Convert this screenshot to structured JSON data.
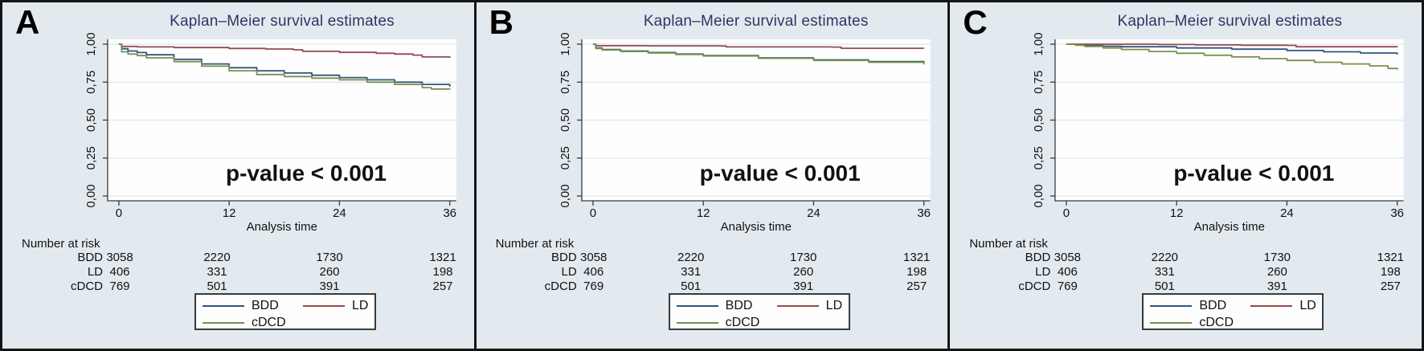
{
  "figure": {
    "panel_labels": [
      "A",
      "B",
      "C"
    ]
  },
  "chart_data": [
    {
      "type": "line",
      "panel": "A",
      "title": "Kaplan–Meier survival estimates",
      "annotation": "p-value < 0.001",
      "xlabel": "Analysis time",
      "ylabel": "",
      "xlim": [
        0,
        36
      ],
      "ylim": [
        0,
        1.0
      ],
      "grid": true,
      "x_ticks": [
        0,
        12,
        24,
        36
      ],
      "x_tick_labels": [
        "0",
        "12",
        "24",
        "36"
      ],
      "y_ticks": [
        0,
        0.25,
        0.5,
        0.75,
        1.0
      ],
      "y_tick_labels": [
        "0,00",
        "0,25",
        "0,50",
        "0,75",
        "1,00"
      ],
      "legend_position": "bottom-center",
      "series": [
        {
          "name": "BDD",
          "color": "#2f5580",
          "x": [
            0,
            0.3,
            1,
            2,
            3,
            6,
            9,
            12,
            15,
            18,
            21,
            24,
            27,
            30,
            33,
            36
          ],
          "y": [
            1.0,
            0.97,
            0.955,
            0.945,
            0.93,
            0.9,
            0.87,
            0.845,
            0.825,
            0.81,
            0.795,
            0.78,
            0.765,
            0.75,
            0.735,
            0.72
          ]
        },
        {
          "name": "LD",
          "color": "#944a4e",
          "x": [
            0,
            0.3,
            2,
            6,
            12,
            16,
            19,
            20,
            24,
            28,
            30,
            32,
            33,
            36
          ],
          "y": [
            1.0,
            0.985,
            0.982,
            0.978,
            0.972,
            0.968,
            0.963,
            0.953,
            0.946,
            0.94,
            0.935,
            0.928,
            0.916,
            0.91
          ]
        },
        {
          "name": "cDCD",
          "color": "#78904a",
          "x": [
            0,
            0.3,
            1,
            2,
            3,
            6,
            9,
            12,
            15,
            18,
            21,
            24,
            27,
            30,
            33,
            34,
            36
          ],
          "y": [
            1.0,
            0.95,
            0.935,
            0.925,
            0.91,
            0.885,
            0.855,
            0.825,
            0.8,
            0.787,
            0.776,
            0.765,
            0.75,
            0.735,
            0.714,
            0.705,
            0.7
          ]
        }
      ],
      "number_at_risk": {
        "title": "Number at risk",
        "times": [
          0,
          12,
          24,
          36
        ],
        "rows": [
          {
            "label": "BDD",
            "values": [
              "3058",
              "2220",
              "1730",
              "1321"
            ]
          },
          {
            "label": "LD",
            "values": [
              "406",
              "331",
              "260",
              "198"
            ]
          },
          {
            "label": "cDCD",
            "values": [
              "769",
              "501",
              "391",
              "257"
            ]
          }
        ]
      }
    },
    {
      "type": "line",
      "panel": "B",
      "title": "Kaplan–Meier survival estimates",
      "annotation": "p-value < 0.001",
      "xlabel": "Analysis time",
      "ylabel": "",
      "xlim": [
        0,
        36
      ],
      "ylim": [
        0,
        1.0
      ],
      "grid": true,
      "x_ticks": [
        0,
        12,
        24,
        36
      ],
      "x_tick_labels": [
        "0",
        "12",
        "24",
        "36"
      ],
      "y_ticks": [
        0,
        0.25,
        0.5,
        0.75,
        1.0
      ],
      "y_tick_labels": [
        "0,00",
        "0,25",
        "0,50",
        "0,75",
        "1,00"
      ],
      "legend_position": "bottom-center",
      "series": [
        {
          "name": "BDD",
          "color": "#2f5580",
          "x": [
            0,
            0.3,
            1,
            3,
            6,
            9,
            12,
            18,
            24,
            30,
            36
          ],
          "y": [
            1.0,
            0.975,
            0.965,
            0.955,
            0.945,
            0.935,
            0.925,
            0.91,
            0.897,
            0.885,
            0.872
          ]
        },
        {
          "name": "LD",
          "color": "#944a4e",
          "x": [
            0,
            0.3,
            6,
            14,
            14.5,
            26,
            27,
            36
          ],
          "y": [
            1.0,
            0.99,
            0.989,
            0.988,
            0.982,
            0.981,
            0.973,
            0.972
          ]
        },
        {
          "name": "cDCD",
          "color": "#78904a",
          "x": [
            0,
            0.3,
            1,
            3,
            6,
            9,
            12,
            18,
            24,
            30,
            36
          ],
          "y": [
            1.0,
            0.972,
            0.962,
            0.952,
            0.942,
            0.932,
            0.922,
            0.907,
            0.893,
            0.881,
            0.866
          ]
        }
      ],
      "number_at_risk": {
        "title": "Number at risk",
        "times": [
          0,
          12,
          24,
          36
        ],
        "rows": [
          {
            "label": "BDD",
            "values": [
              "3058",
              "2220",
              "1730",
              "1321"
            ]
          },
          {
            "label": "LD",
            "values": [
              "406",
              "331",
              "260",
              "198"
            ]
          },
          {
            "label": "cDCD",
            "values": [
              "769",
              "501",
              "391",
              "257"
            ]
          }
        ]
      }
    },
    {
      "type": "line",
      "panel": "C",
      "title": "Kaplan–Meier survival estimates",
      "annotation": "p-value < 0.001",
      "xlabel": "Analysis time",
      "ylabel": "",
      "xlim": [
        0,
        36
      ],
      "ylim": [
        0,
        1.0
      ],
      "grid": true,
      "x_ticks": [
        0,
        12,
        24,
        36
      ],
      "x_tick_labels": [
        "0",
        "12",
        "24",
        "36"
      ],
      "y_ticks": [
        0,
        0.25,
        0.5,
        0.75,
        1.0
      ],
      "y_tick_labels": [
        "0,00",
        "0,25",
        "0,50",
        "0,75",
        "1,00"
      ],
      "legend_position": "bottom-center",
      "series": [
        {
          "name": "BDD",
          "color": "#2f5580",
          "x": [
            0,
            1,
            2,
            4,
            6,
            12,
            18,
            24,
            28,
            32,
            36
          ],
          "y": [
            1.0,
            0.996,
            0.99,
            0.987,
            0.983,
            0.975,
            0.967,
            0.958,
            0.95,
            0.942,
            0.932
          ]
        },
        {
          "name": "LD",
          "color": "#944a4e",
          "x": [
            0,
            10,
            14,
            19,
            24,
            25,
            36
          ],
          "y": [
            1.0,
            0.998,
            0.995,
            0.993,
            0.992,
            0.983,
            0.981
          ]
        },
        {
          "name": "cDCD",
          "color": "#78904a",
          "x": [
            0,
            1,
            2,
            4,
            6,
            9,
            12,
            15,
            18,
            21,
            24,
            27,
            30,
            33,
            35,
            36
          ],
          "y": [
            1.0,
            0.993,
            0.985,
            0.975,
            0.965,
            0.952,
            0.94,
            0.927,
            0.916,
            0.905,
            0.893,
            0.881,
            0.87,
            0.857,
            0.84,
            0.832
          ]
        }
      ],
      "number_at_risk": {
        "title": "Number at risk",
        "times": [
          0,
          12,
          24,
          36
        ],
        "rows": [
          {
            "label": "BDD",
            "values": [
              "3058",
              "2220",
              "1730",
              "1321"
            ]
          },
          {
            "label": "LD",
            "values": [
              "406",
              "331",
              "260",
              "198"
            ]
          },
          {
            "label": "cDCD",
            "values": [
              "769",
              "501",
              "391",
              "257"
            ]
          }
        ]
      }
    }
  ]
}
